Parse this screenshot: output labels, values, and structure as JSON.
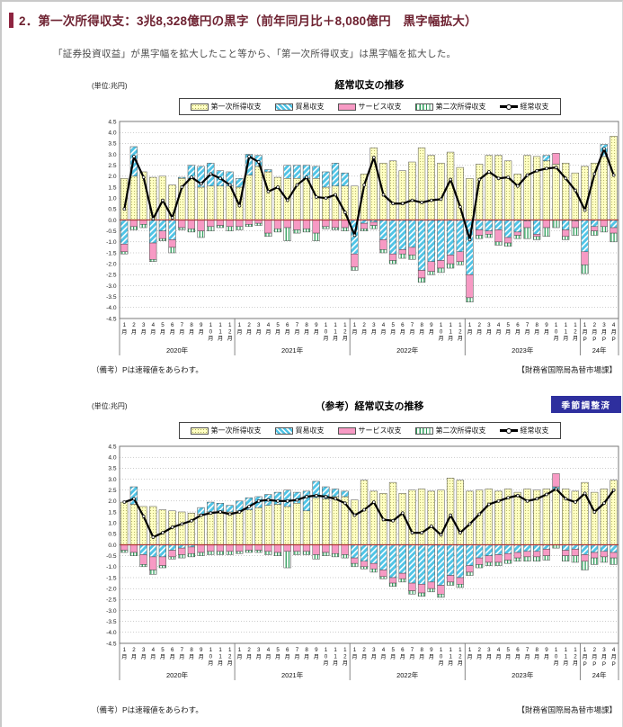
{
  "page": {
    "section_title": "2．第一次所得収支：3兆8,328億円の黒字（前年同月比＋8,080億円　黒字幅拡大）",
    "subtitle": "「証券投資収益」が黒字幅を拡大したこと等から、「第一次所得収支」は黒字幅を拡大した。"
  },
  "colors": {
    "accent_maroon": "#8e2440",
    "title_text": "#6e2231",
    "bar_primary_fill": "#ffffc2",
    "bar_primary_dot": "#a8a855",
    "bar_trade_fill": "#4fc4e6",
    "bar_services_fill": "#f79ac4",
    "bar_secondary_stripe": "#2e9e5b",
    "bar_stroke": "#4d4d4d",
    "line_color": "#000000",
    "zero_line": "#aa3333",
    "grid": "#999999",
    "plot_border": "#777777",
    "badge_bg": "#2e2f9e",
    "badge_text": "#ffffff"
  },
  "legend": {
    "items": [
      {
        "label": "第一次所得収支",
        "style": "primary"
      },
      {
        "label": "貿易収支",
        "style": "trade"
      },
      {
        "label": "サービス収支",
        "style": "services"
      },
      {
        "label": "第二次所得収支",
        "style": "secondary"
      },
      {
        "label": "経常収支",
        "style": "line"
      }
    ]
  },
  "chart_data": [
    {
      "type": "bar",
      "subtype": "stacked-bar-with-line",
      "title": "経常収支の推移",
      "unit_label": "(単位:兆円)",
      "ylim": [
        -4.5,
        4.5
      ],
      "ytick_step": 0.5,
      "grid": true,
      "legend_position": "top",
      "years": [
        {
          "label": "2020年",
          "months": 12
        },
        {
          "label": "2021年",
          "months": 12
        },
        {
          "label": "2022年",
          "months": 12
        },
        {
          "label": "2023年",
          "months": 12
        },
        {
          "label": "24年",
          "months": 4
        }
      ],
      "month_labels": [
        1,
        2,
        3,
        4,
        5,
        6,
        7,
        8,
        9,
        10,
        11,
        12,
        1,
        2,
        3,
        4,
        5,
        6,
        7,
        8,
        9,
        10,
        11,
        12,
        1,
        2,
        3,
        4,
        5,
        6,
        7,
        8,
        9,
        10,
        11,
        12,
        1,
        2,
        3,
        4,
        5,
        6,
        7,
        8,
        9,
        10,
        11,
        12,
        1,
        2,
        3,
        4
      ],
      "month_suffix": "月",
      "preliminary_mark": "P",
      "preliminary_count": 4,
      "series": [
        {
          "name": "第一次所得収支",
          "color_key": "primary",
          "values": [
            1.9,
            2.0,
            2.2,
            1.95,
            2.0,
            1.6,
            1.9,
            1.9,
            1.5,
            1.55,
            1.55,
            1.55,
            1.5,
            2.05,
            2.45,
            2.2,
            1.95,
            1.9,
            1.9,
            1.9,
            1.9,
            1.5,
            1.55,
            1.55,
            1.55,
            2.1,
            3.3,
            2.6,
            2.7,
            2.25,
            2.65,
            3.3,
            2.95,
            2.6,
            3.1,
            2.4,
            1.9,
            2.55,
            2.95,
            2.95,
            2.7,
            2.1,
            2.95,
            2.9,
            2.7,
            2.55,
            2.6,
            2.15,
            2.45,
            2.6,
            2.9,
            3.83
          ]
        },
        {
          "name": "貿易収支",
          "color_key": "trade",
          "values": [
            -1.1,
            1.35,
            0,
            -1.05,
            -0.5,
            -0.9,
            0.05,
            0.6,
            0.95,
            1.05,
            0.7,
            0.65,
            0.4,
            0.95,
            0.5,
            0.1,
            0,
            0.6,
            0.6,
            0.6,
            0.55,
            0.7,
            1.05,
            0.6,
            -1.55,
            -0.15,
            -0.1,
            -0.9,
            -1.55,
            -1.35,
            -1.25,
            -2.3,
            -1.9,
            -1.85,
            -1.6,
            -1.45,
            -2.5,
            -0.45,
            -0.5,
            -0.45,
            -0.8,
            -0.55,
            -0.05,
            -0.65,
            0.25,
            0,
            -0.45,
            -0.05,
            -1.45,
            -0.3,
            0.55,
            -0.35
          ]
        },
        {
          "name": "サービス収支",
          "color_key": "services",
          "values": [
            -0.35,
            -0.3,
            -0.2,
            -0.75,
            -0.35,
            -0.35,
            -0.35,
            -0.4,
            -0.5,
            -0.3,
            -0.25,
            -0.3,
            -0.3,
            -0.2,
            -0.15,
            -0.6,
            -0.4,
            -0.35,
            -0.45,
            -0.4,
            -0.6,
            -0.3,
            -0.35,
            -0.35,
            -0.6,
            -0.25,
            -0.15,
            -0.45,
            -0.3,
            -0.2,
            -0.35,
            -0.35,
            -0.45,
            -0.35,
            -0.4,
            -0.45,
            -1.05,
            -0.25,
            -0.15,
            -0.55,
            -0.25,
            -0.15,
            -0.3,
            -0.1,
            -0.35,
            0.5,
            -0.3,
            -0.3,
            -0.6,
            -0.2,
            -0.3,
            -0.25
          ]
        },
        {
          "name": "第二次所得収支",
          "color_key": "secondary",
          "values": [
            -0.1,
            -0.15,
            -0.15,
            -0.1,
            -0.1,
            -0.25,
            -0.1,
            -0.15,
            -0.3,
            -0.2,
            -0.1,
            -0.2,
            -0.15,
            -0.1,
            -0.1,
            -0.15,
            -0.15,
            -0.6,
            -0.15,
            -0.15,
            -0.35,
            -0.1,
            -0.1,
            -0.15,
            -0.15,
            -0.1,
            -0.15,
            -0.15,
            -0.15,
            -0.2,
            -0.2,
            -0.2,
            -0.15,
            -0.2,
            -0.2,
            -0.15,
            -0.2,
            -0.15,
            -0.15,
            -0.15,
            -0.15,
            -0.15,
            -0.5,
            -0.15,
            -0.4,
            -0.35,
            -0.15,
            -0.35,
            -0.4,
            -0.2,
            -0.25,
            -0.4
          ]
        }
      ],
      "line": {
        "name": "経常収支",
        "values": [
          0.5,
          2.9,
          1.95,
          0.05,
          0.9,
          0.1,
          1.5,
          1.95,
          1.65,
          2.1,
          1.9,
          1.6,
          0.65,
          2.9,
          2.65,
          1.3,
          1.5,
          0.9,
          1.6,
          1.95,
          1.05,
          1.0,
          1.15,
          0.35,
          -0.7,
          1.6,
          2.85,
          1.15,
          0.75,
          0.75,
          0.9,
          0.8,
          0.9,
          0.95,
          1.85,
          0.6,
          -0.9,
          1.85,
          2.2,
          1.9,
          1.95,
          1.55,
          2.05,
          2.25,
          2.35,
          2.4,
          1.9,
          1.35,
          0.45,
          2.1,
          3.25,
          2.05
        ]
      },
      "note_left": "（備考）Pは速報値をあらわす。",
      "note_right": "【財務省国際局為替市場課】"
    },
    {
      "type": "bar",
      "subtype": "stacked-bar-with-line",
      "title": "（参考）経常収支の推移",
      "badge": "季節調整済",
      "unit_label": "(単位:兆円)",
      "ylim": [
        -4.5,
        4.5
      ],
      "ytick_step": 0.5,
      "grid": true,
      "legend_position": "top",
      "years": [
        {
          "label": "2020年",
          "months": 12
        },
        {
          "label": "2021年",
          "months": 12
        },
        {
          "label": "2022年",
          "months": 12
        },
        {
          "label": "2023年",
          "months": 12
        },
        {
          "label": "24年",
          "months": 4
        }
      ],
      "month_labels": [
        1,
        2,
        3,
        4,
        5,
        6,
        7,
        8,
        9,
        10,
        11,
        12,
        1,
        2,
        3,
        4,
        5,
        6,
        7,
        8,
        9,
        10,
        11,
        12,
        1,
        2,
        3,
        4,
        5,
        6,
        7,
        8,
        9,
        10,
        11,
        12,
        1,
        2,
        3,
        4,
        5,
        6,
        7,
        8,
        9,
        10,
        11,
        12,
        1,
        2,
        3,
        4
      ],
      "month_suffix": "月",
      "preliminary_mark": "P",
      "preliminary_count": 4,
      "series": [
        {
          "name": "第一次所得収支",
          "color_key": "primary",
          "values": [
            1.95,
            1.85,
            1.75,
            1.75,
            1.6,
            1.55,
            1.5,
            1.45,
            1.4,
            1.5,
            1.55,
            1.5,
            1.55,
            1.6,
            1.7,
            1.8,
            1.85,
            1.75,
            1.9,
            1.55,
            2.15,
            2.1,
            2.2,
            2.2,
            2.05,
            2.95,
            2.45,
            2.35,
            2.85,
            2.35,
            2.5,
            2.55,
            2.45,
            2.5,
            3.05,
            2.95,
            2.45,
            2.5,
            2.55,
            2.45,
            2.55,
            2.4,
            2.55,
            2.5,
            2.55,
            2.55,
            2.55,
            2.45,
            2.85,
            2.4,
            2.55,
            2.95
          ]
        },
        {
          "name": "貿易収支",
          "color_key": "trade",
          "values": [
            0,
            0.8,
            -0.45,
            -0.55,
            -0.55,
            -0.25,
            -0.15,
            -0.1,
            0.3,
            0.45,
            0.35,
            0.3,
            0.45,
            0.55,
            0.5,
            0.5,
            0.55,
            0.75,
            0.5,
            0.9,
            0.75,
            0.55,
            0.35,
            0.25,
            -0.6,
            -0.75,
            -0.85,
            -1.15,
            -1.5,
            -1.3,
            -1.75,
            -1.8,
            -1.7,
            -1.85,
            -1.4,
            -1.5,
            -0.95,
            -0.6,
            -0.5,
            -0.45,
            -0.4,
            -0.35,
            -0.3,
            -0.3,
            -0.2,
            0.1,
            -0.25,
            -0.2,
            -0.45,
            -0.35,
            -0.3,
            -0.35
          ]
        },
        {
          "name": "サービス収支",
          "color_key": "services",
          "values": [
            -0.25,
            -0.35,
            -0.45,
            -0.6,
            -0.4,
            -0.3,
            -0.3,
            -0.3,
            -0.35,
            -0.3,
            -0.3,
            -0.3,
            -0.3,
            -0.25,
            -0.25,
            -0.3,
            -0.35,
            -0.3,
            -0.3,
            -0.3,
            -0.45,
            -0.35,
            -0.4,
            -0.45,
            -0.25,
            -0.25,
            -0.25,
            -0.3,
            -0.25,
            -0.25,
            -0.35,
            -0.4,
            -0.3,
            -0.4,
            -0.3,
            -0.3,
            -0.3,
            -0.3,
            -0.3,
            -0.35,
            -0.3,
            -0.25,
            -0.25,
            -0.25,
            -0.3,
            0.6,
            -0.25,
            -0.3,
            -0.3,
            -0.25,
            -0.25,
            -0.25
          ]
        },
        {
          "name": "第二次所得収支",
          "color_key": "secondary",
          "values": [
            -0.1,
            -0.15,
            -0.1,
            -0.2,
            -0.1,
            -0.1,
            -0.15,
            -0.15,
            -0.15,
            -0.15,
            -0.15,
            -0.15,
            -0.1,
            -0.1,
            -0.1,
            -0.15,
            -0.15,
            -0.75,
            -0.15,
            -0.15,
            -0.2,
            -0.15,
            -0.15,
            -0.15,
            -0.15,
            -0.1,
            -0.15,
            -0.1,
            -0.15,
            -0.15,
            -0.15,
            -0.15,
            -0.15,
            -0.15,
            -0.15,
            -0.15,
            -0.15,
            -0.15,
            -0.15,
            -0.15,
            -0.15,
            -0.15,
            -0.2,
            -0.2,
            -0.2,
            -0.15,
            -0.25,
            -0.3,
            -0.4,
            -0.3,
            -0.25,
            -0.3
          ]
        }
      ],
      "line": {
        "name": "経常収支",
        "values": [
          1.95,
          2.1,
          1.3,
          0.35,
          0.55,
          0.8,
          0.95,
          1.1,
          1.35,
          1.45,
          1.5,
          1.4,
          1.5,
          1.75,
          2.0,
          2.05,
          2.0,
          2.0,
          2.05,
          2.2,
          2.25,
          2.2,
          2.1,
          1.9,
          1.35,
          1.6,
          1.95,
          1.15,
          1.1,
          1.45,
          0.55,
          0.55,
          0.85,
          0.45,
          1.35,
          0.55,
          0.95,
          1.4,
          1.85,
          2.0,
          2.15,
          2.25,
          2.0,
          2.1,
          2.3,
          2.55,
          2.1,
          1.95,
          2.35,
          1.5,
          1.9,
          2.5
        ]
      },
      "note_left": "（備考）Pは速報値をあらわす。",
      "note_right": "【財務省国際局為替市場課】"
    }
  ]
}
